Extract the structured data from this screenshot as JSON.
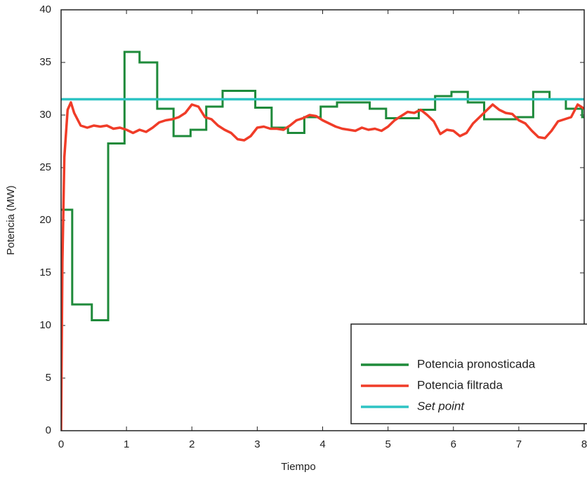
{
  "chart_data": {
    "type": "line",
    "xlabel": "Tiempo",
    "ylabel": "Potencia (MW)",
    "xlim": [
      0,
      8
    ],
    "ylim": [
      0,
      40
    ],
    "xticks": [
      0,
      1,
      2,
      3,
      4,
      5,
      6,
      7,
      8
    ],
    "yticks": [
      0,
      5,
      10,
      15,
      20,
      25,
      30,
      35,
      40
    ],
    "legend": "lower right",
    "series": [
      {
        "name": "Potencia pronosticada",
        "color": "#1e8a3a",
        "step": true,
        "x": [
          0,
          0.17,
          0.47,
          0.72,
          0.97,
          1.2,
          1.47,
          1.72,
          1.98,
          2.22,
          2.47,
          2.97,
          3.22,
          3.47,
          3.72,
          3.97,
          4.22,
          4.72,
          4.97,
          5.47,
          5.72,
          5.97,
          6.22,
          6.47,
          6.97,
          7.22,
          7.47,
          7.72,
          7.97
        ],
        "values": [
          21,
          12,
          10.5,
          27.3,
          36,
          35,
          30.6,
          28,
          28.6,
          30.8,
          32.3,
          30.7,
          28.8,
          28.3,
          29.8,
          30.8,
          31.2,
          30.6,
          29.7,
          30.5,
          31.8,
          32.2,
          31.2,
          29.6,
          29.8,
          32.2,
          31.5,
          30.6,
          29.8
        ]
      },
      {
        "name": "Potencia filtrada",
        "color": "#f03c28",
        "x": [
          0,
          0.02,
          0.05,
          0.1,
          0.15,
          0.2,
          0.3,
          0.4,
          0.5,
          0.6,
          0.7,
          0.8,
          0.9,
          1.0,
          1.1,
          1.2,
          1.3,
          1.4,
          1.5,
          1.6,
          1.7,
          1.8,
          1.9,
          2.0,
          2.1,
          2.2,
          2.3,
          2.4,
          2.5,
          2.6,
          2.7,
          2.8,
          2.9,
          3.0,
          3.1,
          3.2,
          3.3,
          3.4,
          3.5,
          3.6,
          3.7,
          3.8,
          3.9,
          4.0,
          4.1,
          4.2,
          4.3,
          4.4,
          4.5,
          4.6,
          4.7,
          4.8,
          4.9,
          5.0,
          5.1,
          5.2,
          5.3,
          5.4,
          5.5,
          5.6,
          5.7,
          5.8,
          5.9,
          6.0,
          6.1,
          6.2,
          6.3,
          6.4,
          6.5,
          6.6,
          6.7,
          6.8,
          6.9,
          7.0,
          7.1,
          7.2,
          7.3,
          7.4,
          7.5,
          7.6,
          7.7,
          7.8,
          7.9,
          8.0
        ],
        "values": [
          0,
          16,
          26,
          30.5,
          31.2,
          30.2,
          29,
          28.8,
          29,
          28.9,
          29,
          28.7,
          28.8,
          28.6,
          28.3,
          28.6,
          28.4,
          28.8,
          29.3,
          29.5,
          29.6,
          29.8,
          30.2,
          31,
          30.8,
          29.8,
          29.6,
          29,
          28.6,
          28.3,
          27.7,
          27.6,
          28,
          28.8,
          28.9,
          28.7,
          28.7,
          28.6,
          29,
          29.5,
          29.7,
          30,
          29.9,
          29.5,
          29.2,
          28.9,
          28.7,
          28.6,
          28.5,
          28.8,
          28.6,
          28.7,
          28.5,
          28.9,
          29.5,
          29.9,
          30.3,
          30.2,
          30.5,
          30,
          29.4,
          28.2,
          28.6,
          28.5,
          28,
          28.3,
          29.2,
          29.8,
          30.4,
          31,
          30.5,
          30.2,
          30.1,
          29.5,
          29.2,
          28.5,
          27.9,
          27.8,
          28.5,
          29.4,
          29.6,
          29.8,
          31,
          30.6
        ]
      },
      {
        "name": "Set point",
        "color": "#2ec4c4",
        "italic": true,
        "x": [
          0,
          8
        ],
        "values": [
          31.5,
          31.5
        ]
      }
    ]
  }
}
